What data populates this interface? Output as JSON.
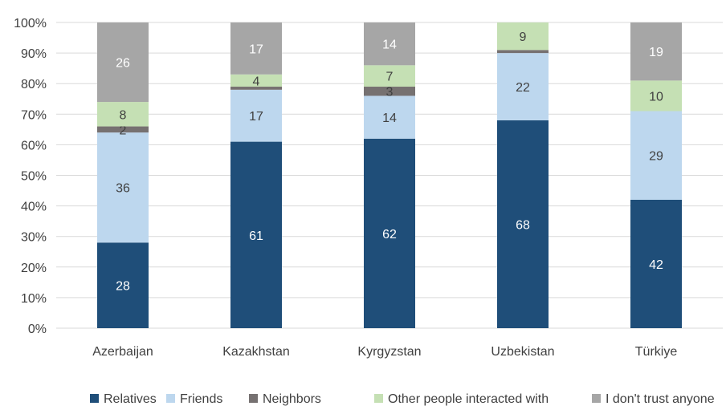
{
  "chart_data": {
    "type": "bar",
    "stacked": true,
    "title": "",
    "xlabel": "",
    "ylabel": "",
    "ylim": [
      0,
      100
    ],
    "y_ticks": [
      "0%",
      "10%",
      "20%",
      "30%",
      "40%",
      "50%",
      "60%",
      "70%",
      "80%",
      "90%",
      "100%"
    ],
    "grid": true,
    "legend_position": "bottom",
    "categories": [
      "Azerbaijan",
      "Kazakhstan",
      "Kyrgyzstan",
      "Uzbekistan",
      "Türkiye"
    ],
    "series": [
      {
        "name": "Relatives",
        "color": "#1f4e79",
        "label_color": "#ffffff",
        "values": [
          28,
          61,
          62,
          68,
          42
        ],
        "labels": [
          "28",
          "61",
          "62",
          "68",
          "42"
        ]
      },
      {
        "name": "Friends",
        "color": "#bdd7ee",
        "label_color": "#404040",
        "values": [
          36,
          17,
          14,
          22,
          29
        ],
        "labels": [
          "36",
          "17",
          "14",
          "22",
          "29"
        ]
      },
      {
        "name": "Neighbors",
        "color": "#767171",
        "label_color": "#404040",
        "values": [
          2,
          1,
          3,
          1,
          0
        ],
        "labels": [
          "2",
          "",
          "3",
          "",
          ""
        ]
      },
      {
        "name": "Other people interacted with",
        "color": "#c5e0b4",
        "label_color": "#404040",
        "values": [
          8,
          4,
          7,
          9,
          10
        ],
        "labels": [
          "8",
          "4",
          "7",
          "9",
          "10"
        ]
      },
      {
        "name": "I don't trust anyone",
        "color": "#a6a6a6",
        "label_color": "#ffffff",
        "values": [
          26,
          17,
          14,
          0,
          19
        ],
        "labels": [
          "26",
          "17",
          "14",
          "",
          "19"
        ]
      }
    ]
  }
}
